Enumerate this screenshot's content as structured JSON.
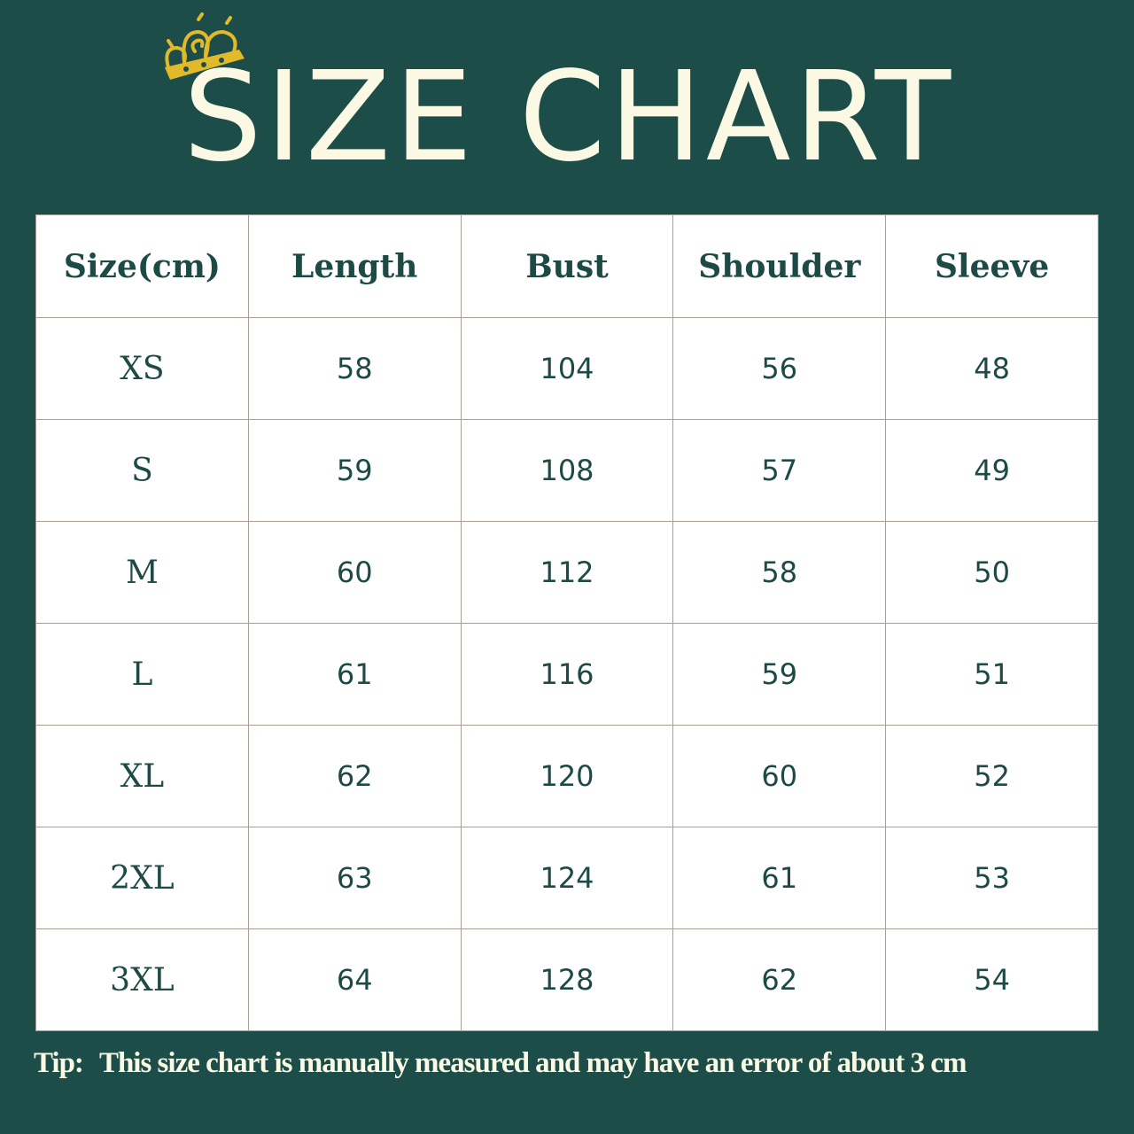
{
  "title": "SIZE CHART",
  "logo_icon": "crown-icon",
  "colors": {
    "background": "#1c4d48",
    "title_text": "#fbf9e4",
    "table_text": "#1e4a45",
    "crown": "#e2b92a"
  },
  "table": {
    "headers": [
      "Size(cm)",
      "Length",
      "Bust",
      "Shoulder",
      "Sleeve"
    ],
    "rows": [
      [
        "XS",
        "58",
        "104",
        "56",
        "48"
      ],
      [
        "S",
        "59",
        "108",
        "57",
        "49"
      ],
      [
        "M",
        "60",
        "112",
        "58",
        "50"
      ],
      [
        "L",
        "61",
        "116",
        "59",
        "51"
      ],
      [
        "XL",
        "62",
        "120",
        "60",
        "52"
      ],
      [
        "2XL",
        "63",
        "124",
        "61",
        "53"
      ],
      [
        "3XL",
        "64",
        "128",
        "62",
        "54"
      ]
    ]
  },
  "tip": {
    "label": "Tip:",
    "text": "This size chart is manually measured and may have an error of about 3 cm"
  }
}
